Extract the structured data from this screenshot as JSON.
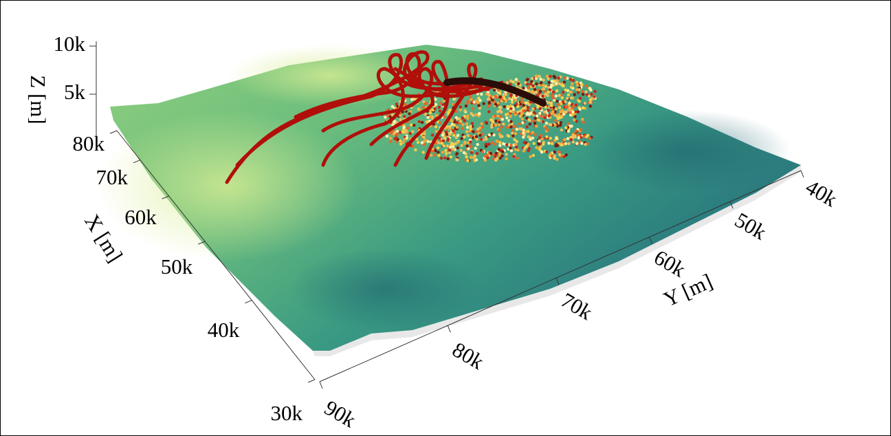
{
  "chart_data": {
    "type": "surface3d",
    "xlabel": "X [m]",
    "ylabel": "Y [m]",
    "zlabel": "Z [m]",
    "xlim": [
      30000,
      80000
    ],
    "xticks": [
      {
        "value": 30000,
        "label": "30k"
      },
      {
        "value": 40000,
        "label": "40k"
      },
      {
        "value": 50000,
        "label": "50k"
      },
      {
        "value": 60000,
        "label": "60k"
      },
      {
        "value": 70000,
        "label": "70k"
      },
      {
        "value": 80000,
        "label": "80k"
      }
    ],
    "ylim": [
      40000,
      90000
    ],
    "yticks": [
      {
        "value": 90000,
        "label": "90k"
      },
      {
        "value": 80000,
        "label": "80k"
      },
      {
        "value": 70000,
        "label": "70k"
      },
      {
        "value": 60000,
        "label": "60k"
      },
      {
        "value": 50000,
        "label": "50k"
      },
      {
        "value": 40000,
        "label": "40k"
      }
    ],
    "zlim": [
      0,
      10000
    ],
    "zticks": [
      {
        "value": 5000,
        "label": "5k"
      },
      {
        "value": 10000,
        "label": "10k"
      }
    ]
  }
}
